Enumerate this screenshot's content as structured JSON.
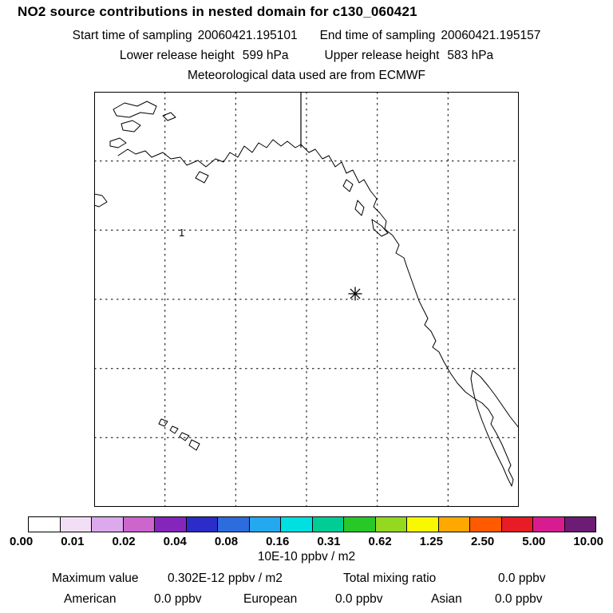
{
  "header": {
    "title": "NO2 source contributions in nested domain for c130_060421",
    "sampling": {
      "start_label": "Start time of sampling",
      "start_value": "20060421.195101",
      "end_label": "End time of sampling",
      "end_value": "20060421.195157"
    },
    "release": {
      "lower_label": "Lower release height",
      "lower_value": "599 hPa",
      "upper_label": "Upper release height",
      "upper_value": "583 hPa"
    },
    "met_source": "Meteorological data used are from ECMWF"
  },
  "map_overlay": {
    "release_marker": "asterisk",
    "site_label": "1"
  },
  "colorbar": {
    "tick_labels": [
      "0.00",
      "0.01",
      "0.02",
      "0.04",
      "0.08",
      "0.16",
      "0.31",
      "0.62",
      "1.25",
      "2.50",
      "5.00",
      "10.00"
    ],
    "colors": [
      "#ffffff",
      "#f2dff6",
      "#dcaaec",
      "#cc66cc",
      "#8426bc",
      "#2c2cc8",
      "#2c6cdc",
      "#24a8f0",
      "#00e0e0",
      "#00cc96",
      "#28c828",
      "#94d820",
      "#f8f800",
      "#ffa800",
      "#ff5a00",
      "#e81c24",
      "#d81c90",
      "#6c1c74"
    ],
    "units": "10E-10 ppbv / m2"
  },
  "footer": {
    "max_label": "Maximum value",
    "max_value": "0.302E-12 ppbv / m2",
    "total_label": "Total mixing ratio",
    "total_value": "0.0 ppbv",
    "regions": [
      {
        "name": "American",
        "value": "0.0 ppbv"
      },
      {
        "name": "European",
        "value": "0.0 ppbv"
      },
      {
        "name": "Asian",
        "value": "0.0 ppbv"
      }
    ]
  },
  "chart_data": {
    "type": "heatmap",
    "title": "NO2 source contributions in nested domain for c130_060421",
    "subtitle": "Meteorological data used are from ECMWF",
    "legend_levels": [
      0.0,
      0.01,
      0.02,
      0.04,
      0.08,
      0.16,
      0.31,
      0.62,
      1.25,
      2.5,
      5.0,
      10.0
    ],
    "legend_units": "10E-10 ppbv / m2",
    "field_note": "No grid cells exceed the lowest contour level; map shows only coastlines, dashed graticule, release marker (*) and site label 1",
    "maximum_value": "0.302E-12 ppbv / m2",
    "total_mixing_ratio_ppbv": 0.0,
    "series": [
      {
        "name": "American",
        "value_ppbv": 0.0
      },
      {
        "name": "European",
        "value_ppbv": 0.0
      },
      {
        "name": "Asian",
        "value_ppbv": 0.0
      }
    ],
    "sampling_start": "20060421.195101",
    "sampling_end": "20060421.195157",
    "lower_release_height_hPa": 599,
    "upper_release_height_hPa": 583
  }
}
